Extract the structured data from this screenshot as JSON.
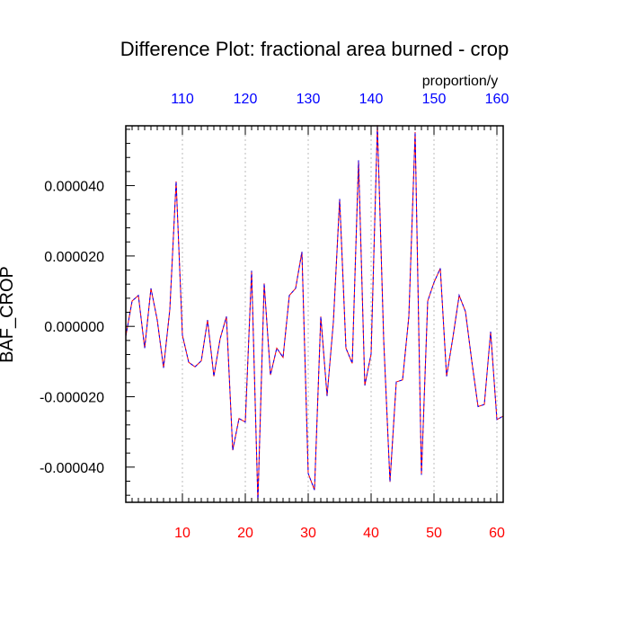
{
  "chart_data": {
    "type": "line",
    "title": "Difference Plot: fractional area burned - crop",
    "ylabel": "BAF_CROP",
    "top_axis_unit": "proportion/y",
    "xlim": [
      1,
      61
    ],
    "ylim": [
      -5e-05,
      5.7e-05
    ],
    "bottom_axis": {
      "tick_values": [
        10,
        20,
        30,
        40,
        50,
        60
      ],
      "tick_labels": [
        "10",
        "20",
        "30",
        "40",
        "50",
        "60"
      ],
      "color": "#ff0000"
    },
    "top_axis": {
      "tick_values": [
        10,
        20,
        30,
        40,
        50,
        60
      ],
      "tick_labels": [
        "110",
        "120",
        "130",
        "140",
        "150",
        "160"
      ],
      "color": "#0000ff"
    },
    "y_ticks": [
      4e-05,
      2e-05,
      0.0,
      -2e-05,
      -4e-05
    ],
    "y_tick_labels": [
      "0.000040",
      "0.000020",
      "0.000000",
      "-0.000020",
      "-0.000040"
    ],
    "vertical_gridlines": true,
    "x": [
      1,
      2,
      3,
      4,
      5,
      6,
      7,
      8,
      9,
      10,
      11,
      12,
      13,
      14,
      15,
      16,
      17,
      18,
      19,
      20,
      21,
      22,
      23,
      24,
      25,
      26,
      27,
      28,
      29,
      30,
      31,
      32,
      33,
      34,
      35,
      36,
      37,
      38,
      39,
      40,
      41,
      42,
      43,
      44,
      45,
      46,
      47,
      48,
      49,
      50,
      51,
      52,
      53,
      54,
      55,
      56,
      57,
      58,
      59,
      60,
      61
    ],
    "series": [
      {
        "color": "#ff0000",
        "values": [
          -2.8e-06,
          7.2e-06,
          8.8e-06,
          -6.2e-06,
          1.08e-05,
          1.8e-06,
          -1.18e-05,
          4.8e-06,
          4.12e-05,
          -2.5e-06,
          -1.02e-05,
          -1.15e-05,
          -9.8e-06,
          1.8e-06,
          -1.42e-05,
          -3.5e-06,
          2.8e-06,
          -3.52e-05,
          -2.62e-05,
          -2.72e-05,
          1.58e-05,
          -4.98e-05,
          1.22e-05,
          -1.38e-05,
          -6.2e-06,
          -8.8e-06,
          8.8e-06,
          1.08e-05,
          2.12e-05,
          -4.18e-05,
          -4.65e-05,
          2.8e-06,
          -1.98e-05,
          1.2e-06,
          3.62e-05,
          -6.2e-06,
          -1.05e-05,
          4.72e-05,
          -1.68e-05,
          -7.8e-06,
          5.72e-05,
          -3.8e-06,
          -4.42e-05,
          -1.58e-05,
          -1.52e-05,
          2.8e-06,
          5.52e-05,
          -4.22e-05,
          7.2e-06,
          1.25e-05,
          1.65e-05,
          -1.42e-05,
          -3.2e-06,
          8.8e-06,
          4.2e-06,
          -9.8e-06,
          -2.28e-05,
          -2.22e-05,
          -1.5e-06,
          -2.65e-05,
          -2.55e-05
        ]
      },
      {
        "color": "#0000ff",
        "values": [
          -2.8e-06,
          7.2e-06,
          8.8e-06,
          -6.2e-06,
          1.08e-05,
          1.8e-06,
          -1.18e-05,
          4.8e-06,
          4.12e-05,
          -2.5e-06,
          -1.02e-05,
          -1.15e-05,
          -9.8e-06,
          1.8e-06,
          -1.42e-05,
          -3.5e-06,
          2.8e-06,
          -3.52e-05,
          -2.62e-05,
          -2.72e-05,
          1.58e-05,
          -4.98e-05,
          1.22e-05,
          -1.38e-05,
          -6.2e-06,
          -8.8e-06,
          8.8e-06,
          1.08e-05,
          2.12e-05,
          -4.18e-05,
          -4.65e-05,
          2.8e-06,
          -1.98e-05,
          1.2e-06,
          3.62e-05,
          -6.2e-06,
          -1.05e-05,
          4.72e-05,
          -1.68e-05,
          -7.8e-06,
          5.72e-05,
          -3.8e-06,
          -4.42e-05,
          -1.58e-05,
          -1.52e-05,
          2.8e-06,
          5.52e-05,
          -4.22e-05,
          7.2e-06,
          1.25e-05,
          1.65e-05,
          -1.42e-05,
          -3.2e-06,
          8.8e-06,
          4.2e-06,
          -9.8e-06,
          -2.28e-05,
          -2.22e-05,
          -1.5e-06,
          -2.65e-05,
          -2.55e-05
        ]
      }
    ]
  }
}
